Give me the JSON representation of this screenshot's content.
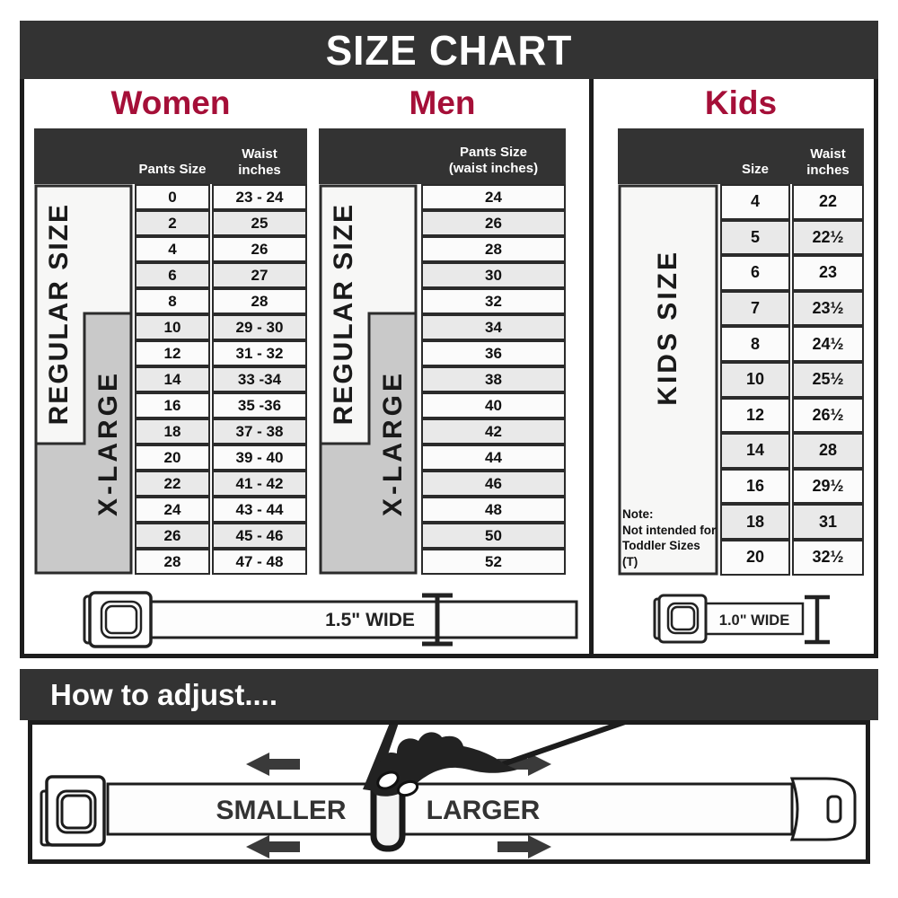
{
  "title": "SIZE CHART",
  "colors": {
    "accent": "#A50F38",
    "dark_bar": "#333333",
    "band_gray": "#C9C9C9",
    "band_white": "#F7F7F6"
  },
  "sections": {
    "women": {
      "heading": "Women",
      "col1_header": "Pants Size",
      "col2_header": "Waist\ninches",
      "regular_label": "REGULAR SIZE",
      "xlarge_label": "X-LARGE",
      "rows": [
        {
          "size": "0",
          "waist": "23 - 24"
        },
        {
          "size": "2",
          "waist": "25"
        },
        {
          "size": "4",
          "waist": "26"
        },
        {
          "size": "6",
          "waist": "27"
        },
        {
          "size": "8",
          "waist": "28"
        },
        {
          "size": "10",
          "waist": "29 - 30"
        },
        {
          "size": "12",
          "waist": "31 - 32"
        },
        {
          "size": "14",
          "waist": "33 -34"
        },
        {
          "size": "16",
          "waist": "35 -36"
        },
        {
          "size": "18",
          "waist": "37 - 38"
        },
        {
          "size": "20",
          "waist": "39 - 40"
        },
        {
          "size": "22",
          "waist": "41 - 42"
        },
        {
          "size": "24",
          "waist": "43 - 44"
        },
        {
          "size": "26",
          "waist": "45 - 46"
        },
        {
          "size": "28",
          "waist": "47 - 48"
        }
      ]
    },
    "men": {
      "heading": "Men",
      "col_header": "Pants Size\n(waist inches)",
      "regular_label": "REGULAR SIZE",
      "xlarge_label": "X-LARGE",
      "rows": [
        "24",
        "26",
        "28",
        "30",
        "32",
        "34",
        "36",
        "38",
        "40",
        "42",
        "44",
        "46",
        "48",
        "50",
        "52"
      ]
    },
    "kids": {
      "heading": "Kids",
      "col1_header": "Size",
      "col2_header": "Waist\ninches",
      "band_label": "KIDS SIZE",
      "note": "Note:\nNot intended for\nToddler Sizes (T)",
      "rows": [
        {
          "size": "4",
          "waist": "22"
        },
        {
          "size": "5",
          "waist": "22½"
        },
        {
          "size": "6",
          "waist": "23"
        },
        {
          "size": "7",
          "waist": "23½"
        },
        {
          "size": "8",
          "waist": "24½"
        },
        {
          "size": "10",
          "waist": "25½"
        },
        {
          "size": "12",
          "waist": "26½"
        },
        {
          "size": "14",
          "waist": "28"
        },
        {
          "size": "16",
          "waist": "29½"
        },
        {
          "size": "18",
          "waist": "31"
        },
        {
          "size": "20",
          "waist": "32½"
        }
      ]
    }
  },
  "belts": {
    "adult_width_label": "1.5\" WIDE",
    "kids_width_label": "1.0\" WIDE"
  },
  "footer": {
    "heading": "How to adjust....",
    "smaller_label": "SMALLER",
    "larger_label": "LARGER"
  }
}
